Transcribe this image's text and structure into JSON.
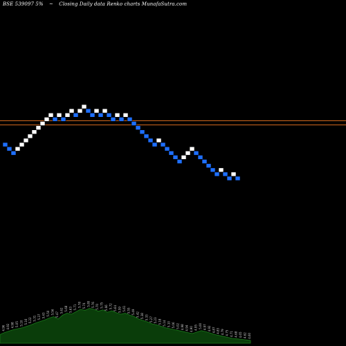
{
  "header": {
    "symbol": "BSE 539097 5%",
    "arrow": "~",
    "description": "Closing Daily data  Renko  charts MunafaSutra.com"
  },
  "colors": {
    "background": "#000000",
    "up_brick": "#ffffff",
    "down_brick": "#1e6fff",
    "reference_lines": "#d2691e",
    "volume_fill": "#0a3d0a",
    "volume_outline": "#1a7a1a",
    "volume_text": "#cfcfcf"
  },
  "chart_data": {
    "type": "renko",
    "price_scale": "unlabeled",
    "reference_lines": [
      "upper",
      "lower"
    ],
    "bricks": [
      {
        "level": 0,
        "dir": "down"
      },
      {
        "level": -1,
        "dir": "down"
      },
      {
        "level": -2,
        "dir": "down"
      },
      {
        "level": -1,
        "dir": "up"
      },
      {
        "level": 0,
        "dir": "up"
      },
      {
        "level": 1,
        "dir": "up"
      },
      {
        "level": 2,
        "dir": "up"
      },
      {
        "level": 3,
        "dir": "up"
      },
      {
        "level": 4,
        "dir": "up"
      },
      {
        "level": 5,
        "dir": "up"
      },
      {
        "level": 6,
        "dir": "up"
      },
      {
        "level": 7,
        "dir": "up"
      },
      {
        "level": 6,
        "dir": "down"
      },
      {
        "level": 7,
        "dir": "up"
      },
      {
        "level": 6,
        "dir": "down"
      },
      {
        "level": 7,
        "dir": "up"
      },
      {
        "level": 8,
        "dir": "up"
      },
      {
        "level": 7,
        "dir": "down"
      },
      {
        "level": 8,
        "dir": "up"
      },
      {
        "level": 9,
        "dir": "up"
      },
      {
        "level": 8,
        "dir": "down"
      },
      {
        "level": 7,
        "dir": "down"
      },
      {
        "level": 8,
        "dir": "up"
      },
      {
        "level": 7,
        "dir": "down"
      },
      {
        "level": 8,
        "dir": "up"
      },
      {
        "level": 7,
        "dir": "down"
      },
      {
        "level": 6,
        "dir": "down"
      },
      {
        "level": 7,
        "dir": "up"
      },
      {
        "level": 6,
        "dir": "down"
      },
      {
        "level": 7,
        "dir": "up"
      },
      {
        "level": 6,
        "dir": "down"
      },
      {
        "level": 5,
        "dir": "down"
      },
      {
        "level": 4,
        "dir": "down"
      },
      {
        "level": 3,
        "dir": "down"
      },
      {
        "level": 2,
        "dir": "down"
      },
      {
        "level": 1,
        "dir": "down"
      },
      {
        "level": 0,
        "dir": "down"
      },
      {
        "level": 1,
        "dir": "up"
      },
      {
        "level": 0,
        "dir": "down"
      },
      {
        "level": -1,
        "dir": "down"
      },
      {
        "level": -2,
        "dir": "down"
      },
      {
        "level": -3,
        "dir": "down"
      },
      {
        "level": -4,
        "dir": "down"
      },
      {
        "level": -3,
        "dir": "up"
      },
      {
        "level": -2,
        "dir": "up"
      },
      {
        "level": -1,
        "dir": "up"
      },
      {
        "level": -2,
        "dir": "down"
      },
      {
        "level": -3,
        "dir": "down"
      },
      {
        "level": -4,
        "dir": "down"
      },
      {
        "level": -5,
        "dir": "down"
      },
      {
        "level": -6,
        "dir": "down"
      },
      {
        "level": -7,
        "dir": "down"
      },
      {
        "level": -6,
        "dir": "up"
      },
      {
        "level": -7,
        "dir": "down"
      },
      {
        "level": -8,
        "dir": "down"
      },
      {
        "level": -7,
        "dir": "up"
      },
      {
        "level": -8,
        "dir": "down"
      }
    ],
    "volume_panel": {
      "heights": [
        0.18,
        0.22,
        0.25,
        0.28,
        0.3,
        0.32,
        0.35,
        0.38,
        0.42,
        0.45,
        0.48,
        0.52,
        0.55,
        0.5,
        0.58,
        0.62,
        0.6,
        0.65,
        0.7,
        0.68,
        0.72,
        0.7,
        0.66,
        0.69,
        0.64,
        0.67,
        0.63,
        0.6,
        0.62,
        0.58,
        0.55,
        0.5,
        0.47,
        0.44,
        0.4,
        0.38,
        0.35,
        0.32,
        0.3,
        0.28,
        0.26,
        0.24,
        0.22,
        0.2,
        0.23,
        0.26,
        0.24,
        0.21,
        0.18,
        0.16,
        0.14,
        0.12,
        0.1,
        0.09,
        0.08,
        0.07,
        0.06
      ],
      "labels": [
        "4.90",
        "4.96",
        "4.92",
        "4.98",
        "5.05",
        "5.10",
        "5.16",
        "5.22",
        "5.31",
        "5.37",
        "5.43",
        "5.50",
        "5.56",
        "5.47",
        "5.62",
        "5.68",
        "5.63",
        "5.71",
        "5.78",
        "5.74",
        "5.80",
        "5.76",
        "5.70",
        "5.75",
        "5.66",
        "5.72",
        "5.64",
        "5.59",
        "5.61",
        "5.55",
        "5.49",
        "5.42",
        "5.38",
        "5.33",
        "5.27",
        "5.23",
        "5.18",
        "5.14",
        "5.10",
        "5.06",
        "5.02",
        "4.98",
        "4.94",
        "4.90",
        "4.95",
        "5.00",
        "4.97",
        "4.92",
        "4.87",
        "4.83",
        "4.79",
        "4.75",
        "4.71",
        "4.68",
        "4.65",
        "4.62",
        "4.60"
      ]
    }
  }
}
